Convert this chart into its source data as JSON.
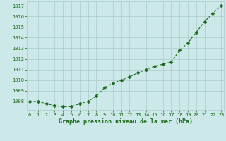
{
  "x": [
    0,
    1,
    2,
    3,
    4,
    5,
    6,
    7,
    8,
    9,
    10,
    11,
    12,
    13,
    14,
    15,
    16,
    17,
    18,
    19,
    20,
    21,
    22,
    23
  ],
  "y": [
    1008.0,
    1008.0,
    1007.8,
    1007.6,
    1007.5,
    1007.5,
    1007.8,
    1008.0,
    1008.5,
    1009.3,
    1009.7,
    1010.0,
    1010.3,
    1010.7,
    1011.0,
    1011.3,
    1011.5,
    1011.7,
    1012.8,
    1013.5,
    1014.5,
    1015.5,
    1016.3,
    1017.0
  ],
  "line_color": "#1a6b1a",
  "marker": "D",
  "marker_size": 2.5,
  "line_width": 0.8,
  "bg_color": "#cce8e8",
  "grid_color": "#aacccc",
  "xlabel": "Graphe pression niveau de la mer (hPa)",
  "xlabel_color": "#1a6b1a",
  "tick_color": "#1a6b1a",
  "label_color": "#1a6b1a",
  "ylim": [
    1007.2,
    1017.4
  ],
  "yticks": [
    1008,
    1009,
    1010,
    1011,
    1012,
    1013,
    1014,
    1015,
    1016,
    1017
  ],
  "xticks": [
    0,
    1,
    2,
    3,
    4,
    5,
    6,
    7,
    8,
    9,
    10,
    11,
    12,
    13,
    14,
    15,
    16,
    17,
    18,
    19,
    20,
    21,
    22,
    23
  ],
  "tick_fontsize": 5.0,
  "xlabel_fontsize": 6.0
}
